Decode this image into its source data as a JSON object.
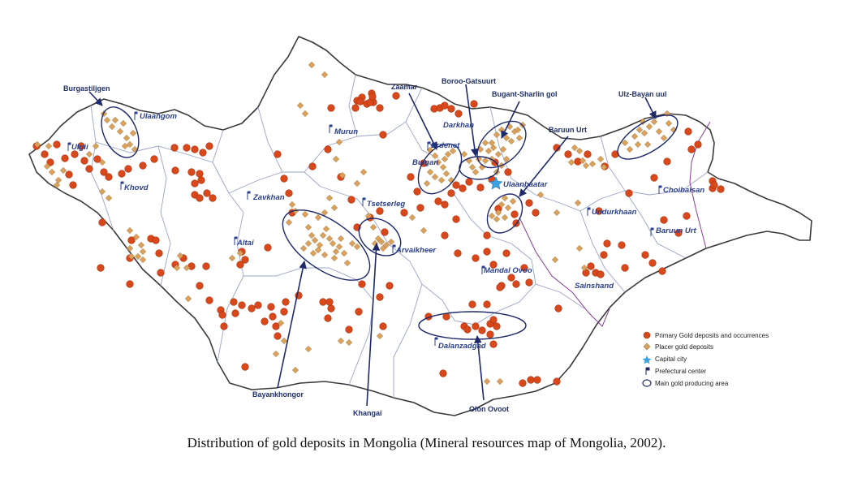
{
  "caption": "Distribution of gold deposits in Mongolia (Mineral resources map of Mongolia, 2002).",
  "colors": {
    "primary": "#d9481a",
    "primary_edge": "#a8310e",
    "placer": "#d9a15c",
    "placer_edge": "#a8773a",
    "capital": "#3aa0e0",
    "ellipse": "#1e2a6b",
    "arrow": "#1e2a6b",
    "border": "#3a3a3a",
    "province": "#9aa3c8",
    "eastern_line": "#8a3c9a"
  },
  "icons": {
    "primary": "red-circle-icon",
    "placer": "orange-diamond-icon",
    "capital": "blue-star-icon",
    "prefecture": "flag-icon",
    "area": "ellipse-outline-icon"
  },
  "cities": [
    {
      "name": "Ulgii"
    },
    {
      "name": "Ulaangom"
    },
    {
      "name": "Khovd"
    },
    {
      "name": "Murun"
    },
    {
      "name": "Zavkhan"
    },
    {
      "name": "Altai"
    },
    {
      "name": "Tsetserleg"
    },
    {
      "name": "Arvaikheer"
    },
    {
      "name": "Bulgan"
    },
    {
      "name": "Erdenet"
    },
    {
      "name": "Darkhan"
    },
    {
      "name": "Ulaanbaatar"
    },
    {
      "name": "Undurkhaan"
    },
    {
      "name": "Choibalsan"
    },
    {
      "name": "Baruun Urt"
    },
    {
      "name": "Mandal Ovoo"
    },
    {
      "name": "Sainshand"
    },
    {
      "name": "Dalanzadgad"
    }
  ],
  "areas": [
    {
      "name": "Burgastiljgen"
    },
    {
      "name": "Zaamar"
    },
    {
      "name": "Boroo-Gatsuurt"
    },
    {
      "name": "Bugant-Sharlin gol"
    },
    {
      "name": "Baruun Urt"
    },
    {
      "name": "Ulz-Bayan uul"
    },
    {
      "name": "Bayankhongor"
    },
    {
      "name": "Khangai"
    },
    {
      "name": "Olon Ovoot"
    }
  ],
  "legend": [
    {
      "label": "Primary Gold deposits and occurrences"
    },
    {
      "label": "Placer gold deposits"
    },
    {
      "label": "Capital city"
    },
    {
      "label": "Prefectural center"
    },
    {
      "label": "Main gold producing area"
    }
  ]
}
